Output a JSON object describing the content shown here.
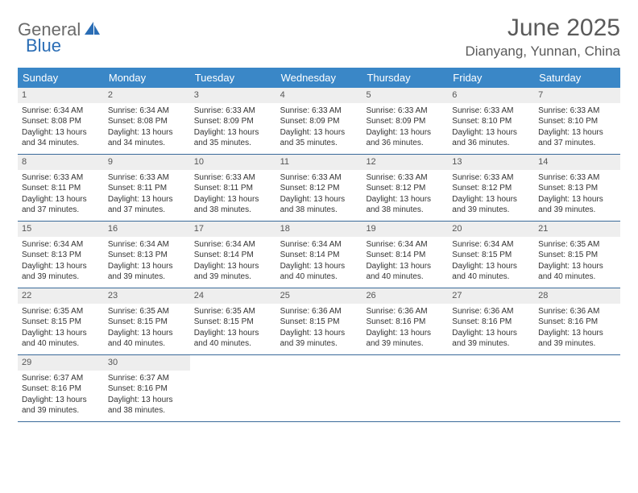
{
  "logo": {
    "t1": "General",
    "t2": "Blue"
  },
  "title": "June 2025",
  "location": "Dianyang, Yunnan, China",
  "colors": {
    "header_bg": "#3a87c7",
    "header_text": "#ffffff",
    "daynum_bg": "#eeeeee",
    "row_border": "#3a6a9a",
    "text": "#333333",
    "title_text": "#5a5a5a",
    "logo_gray": "#6a6a6a",
    "logo_blue": "#2a6db5"
  },
  "weekdays": [
    "Sunday",
    "Monday",
    "Tuesday",
    "Wednesday",
    "Thursday",
    "Friday",
    "Saturday"
  ],
  "weeks": [
    [
      {
        "n": "1",
        "sr": "6:34 AM",
        "ss": "8:08 PM",
        "dl": "13 hours and 34 minutes."
      },
      {
        "n": "2",
        "sr": "6:34 AM",
        "ss": "8:08 PM",
        "dl": "13 hours and 34 minutes."
      },
      {
        "n": "3",
        "sr": "6:33 AM",
        "ss": "8:09 PM",
        "dl": "13 hours and 35 minutes."
      },
      {
        "n": "4",
        "sr": "6:33 AM",
        "ss": "8:09 PM",
        "dl": "13 hours and 35 minutes."
      },
      {
        "n": "5",
        "sr": "6:33 AM",
        "ss": "8:09 PM",
        "dl": "13 hours and 36 minutes."
      },
      {
        "n": "6",
        "sr": "6:33 AM",
        "ss": "8:10 PM",
        "dl": "13 hours and 36 minutes."
      },
      {
        "n": "7",
        "sr": "6:33 AM",
        "ss": "8:10 PM",
        "dl": "13 hours and 37 minutes."
      }
    ],
    [
      {
        "n": "8",
        "sr": "6:33 AM",
        "ss": "8:11 PM",
        "dl": "13 hours and 37 minutes."
      },
      {
        "n": "9",
        "sr": "6:33 AM",
        "ss": "8:11 PM",
        "dl": "13 hours and 37 minutes."
      },
      {
        "n": "10",
        "sr": "6:33 AM",
        "ss": "8:11 PM",
        "dl": "13 hours and 38 minutes."
      },
      {
        "n": "11",
        "sr": "6:33 AM",
        "ss": "8:12 PM",
        "dl": "13 hours and 38 minutes."
      },
      {
        "n": "12",
        "sr": "6:33 AM",
        "ss": "8:12 PM",
        "dl": "13 hours and 38 minutes."
      },
      {
        "n": "13",
        "sr": "6:33 AM",
        "ss": "8:12 PM",
        "dl": "13 hours and 39 minutes."
      },
      {
        "n": "14",
        "sr": "6:33 AM",
        "ss": "8:13 PM",
        "dl": "13 hours and 39 minutes."
      }
    ],
    [
      {
        "n": "15",
        "sr": "6:34 AM",
        "ss": "8:13 PM",
        "dl": "13 hours and 39 minutes."
      },
      {
        "n": "16",
        "sr": "6:34 AM",
        "ss": "8:13 PM",
        "dl": "13 hours and 39 minutes."
      },
      {
        "n": "17",
        "sr": "6:34 AM",
        "ss": "8:14 PM",
        "dl": "13 hours and 39 minutes."
      },
      {
        "n": "18",
        "sr": "6:34 AM",
        "ss": "8:14 PM",
        "dl": "13 hours and 40 minutes."
      },
      {
        "n": "19",
        "sr": "6:34 AM",
        "ss": "8:14 PM",
        "dl": "13 hours and 40 minutes."
      },
      {
        "n": "20",
        "sr": "6:34 AM",
        "ss": "8:15 PM",
        "dl": "13 hours and 40 minutes."
      },
      {
        "n": "21",
        "sr": "6:35 AM",
        "ss": "8:15 PM",
        "dl": "13 hours and 40 minutes."
      }
    ],
    [
      {
        "n": "22",
        "sr": "6:35 AM",
        "ss": "8:15 PM",
        "dl": "13 hours and 40 minutes."
      },
      {
        "n": "23",
        "sr": "6:35 AM",
        "ss": "8:15 PM",
        "dl": "13 hours and 40 minutes."
      },
      {
        "n": "24",
        "sr": "6:35 AM",
        "ss": "8:15 PM",
        "dl": "13 hours and 40 minutes."
      },
      {
        "n": "25",
        "sr": "6:36 AM",
        "ss": "8:15 PM",
        "dl": "13 hours and 39 minutes."
      },
      {
        "n": "26",
        "sr": "6:36 AM",
        "ss": "8:16 PM",
        "dl": "13 hours and 39 minutes."
      },
      {
        "n": "27",
        "sr": "6:36 AM",
        "ss": "8:16 PM",
        "dl": "13 hours and 39 minutes."
      },
      {
        "n": "28",
        "sr": "6:36 AM",
        "ss": "8:16 PM",
        "dl": "13 hours and 39 minutes."
      }
    ],
    [
      {
        "n": "29",
        "sr": "6:37 AM",
        "ss": "8:16 PM",
        "dl": "13 hours and 39 minutes."
      },
      {
        "n": "30",
        "sr": "6:37 AM",
        "ss": "8:16 PM",
        "dl": "13 hours and 38 minutes."
      },
      null,
      null,
      null,
      null,
      null
    ]
  ],
  "labels": {
    "sunrise": "Sunrise: ",
    "sunset": "Sunset: ",
    "daylight": "Daylight: "
  }
}
